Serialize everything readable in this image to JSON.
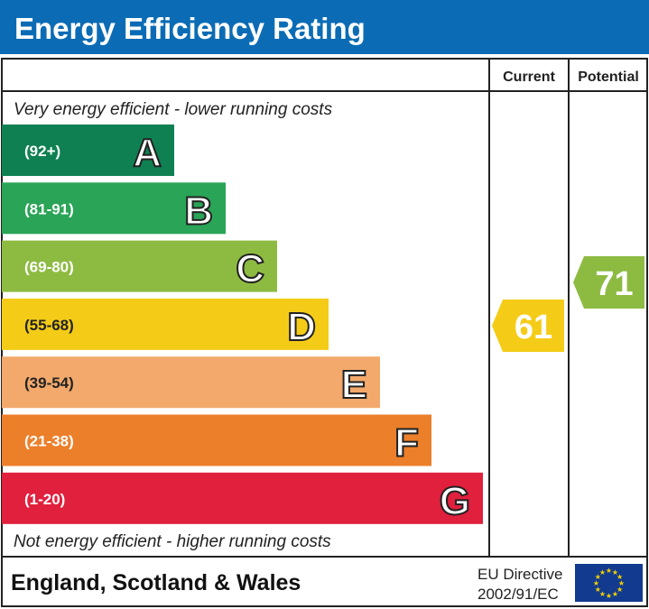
{
  "title": "Energy Efficiency Rating",
  "columns": {
    "current": "Current",
    "potential": "Potential"
  },
  "top_note": "Very energy efficient - lower running costs",
  "bottom_note": "Not energy efficient - higher running costs",
  "footer": {
    "region": "England, Scotland & Wales",
    "directive_line1": "EU Directive",
    "directive_line2": "2002/91/EC"
  },
  "colors": {
    "header": "#0b6cb5",
    "eu_flag": "#123a8f",
    "eu_stars": "#f5d000"
  },
  "chart_data": {
    "type": "bar",
    "bands": [
      {
        "letter": "A",
        "range": "(92+)",
        "color": "#0f8052"
      },
      {
        "letter": "B",
        "range": "(81-91)",
        "color": "#2aa457"
      },
      {
        "letter": "C",
        "range": "(69-80)",
        "color": "#8dbb42"
      },
      {
        "letter": "D",
        "range": "(55-68)",
        "color": "#f4cc17"
      },
      {
        "letter": "E",
        "range": "(39-54)",
        "color": "#f2a96b"
      },
      {
        "letter": "F",
        "range": "(21-38)",
        "color": "#ec7f2a"
      },
      {
        "letter": "G",
        "range": "(1-20)",
        "color": "#e0203d"
      }
    ],
    "current": {
      "value": "61",
      "band": "D",
      "color": "#f4cc17"
    },
    "potential": {
      "value": "71",
      "band": "C",
      "color": "#8dbb42"
    }
  }
}
